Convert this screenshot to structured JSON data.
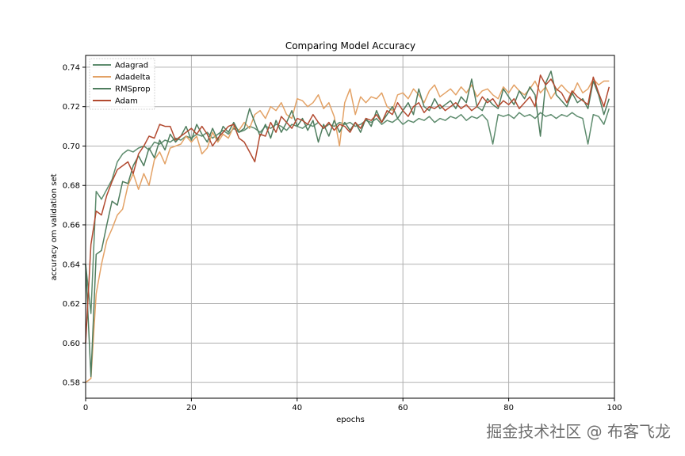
{
  "chart_data": {
    "type": "line",
    "title": "Comparing Model Accuracy",
    "xlabel": "epochs",
    "ylabel": "accuracy om validation set",
    "xlim": [
      0,
      100
    ],
    "ylim": [
      0.572,
      0.746
    ],
    "xticks": [
      0,
      20,
      40,
      60,
      80,
      100
    ],
    "yticks": [
      0.58,
      0.6,
      0.62,
      0.64,
      0.66,
      0.68,
      0.7,
      0.72,
      0.74
    ],
    "grid": true,
    "legend_position": "top-left",
    "series": [
      {
        "name": "Adagrad",
        "color": "#5e8c6e",
        "values": [
          0.64,
          0.615,
          0.677,
          0.673,
          0.678,
          0.683,
          0.692,
          0.696,
          0.698,
          0.697,
          0.699,
          0.7,
          0.698,
          0.702,
          0.701,
          0.703,
          0.702,
          0.704,
          0.703,
          0.705,
          0.704,
          0.706,
          0.705,
          0.707,
          0.704,
          0.706,
          0.708,
          0.706,
          0.709,
          0.707,
          0.708,
          0.71,
          0.709,
          0.707,
          0.71,
          0.709,
          0.711,
          0.71,
          0.708,
          0.711,
          0.71,
          0.709,
          0.711,
          0.71,
          0.712,
          0.709,
          0.711,
          0.71,
          0.712,
          0.711,
          0.712,
          0.71,
          0.711,
          0.713,
          0.712,
          0.714,
          0.711,
          0.713,
          0.712,
          0.714,
          0.711,
          0.713,
          0.712,
          0.714,
          0.713,
          0.715,
          0.712,
          0.714,
          0.713,
          0.715,
          0.714,
          0.716,
          0.713,
          0.715,
          0.714,
          0.716,
          0.713,
          0.701,
          0.716,
          0.715,
          0.716,
          0.714,
          0.717,
          0.715,
          0.716,
          0.714,
          0.717,
          0.715,
          0.716,
          0.714,
          0.716,
          0.715,
          0.717,
          0.715,
          0.714,
          0.701,
          0.716,
          0.715,
          0.711,
          0.719
        ]
      },
      {
        "name": "Adadelta",
        "color": "#e3a266",
        "values": [
          0.58,
          0.582,
          0.625,
          0.64,
          0.652,
          0.658,
          0.665,
          0.668,
          0.68,
          0.686,
          0.678,
          0.686,
          0.68,
          0.693,
          0.697,
          0.691,
          0.699,
          0.7,
          0.701,
          0.705,
          0.702,
          0.705,
          0.696,
          0.699,
          0.707,
          0.702,
          0.706,
          0.704,
          0.71,
          0.708,
          0.712,
          0.709,
          0.716,
          0.718,
          0.714,
          0.72,
          0.718,
          0.722,
          0.716,
          0.714,
          0.724,
          0.723,
          0.72,
          0.722,
          0.726,
          0.719,
          0.722,
          0.715,
          0.7,
          0.722,
          0.729,
          0.716,
          0.725,
          0.722,
          0.725,
          0.724,
          0.727,
          0.72,
          0.718,
          0.726,
          0.727,
          0.724,
          0.729,
          0.726,
          0.722,
          0.728,
          0.731,
          0.725,
          0.727,
          0.729,
          0.726,
          0.73,
          0.727,
          0.731,
          0.725,
          0.728,
          0.729,
          0.726,
          0.724,
          0.73,
          0.727,
          0.731,
          0.728,
          0.726,
          0.729,
          0.733,
          0.727,
          0.73,
          0.724,
          0.728,
          0.731,
          0.728,
          0.726,
          0.732,
          0.727,
          0.729,
          0.734,
          0.731,
          0.733,
          0.733
        ]
      },
      {
        "name": "RMSprop",
        "color": "#4f7d5e",
        "values": [
          0.64,
          0.583,
          0.645,
          0.647,
          0.66,
          0.672,
          0.67,
          0.682,
          0.681,
          0.69,
          0.695,
          0.69,
          0.699,
          0.694,
          0.703,
          0.698,
          0.706,
          0.702,
          0.705,
          0.71,
          0.703,
          0.711,
          0.706,
          0.702,
          0.709,
          0.703,
          0.71,
          0.707,
          0.712,
          0.707,
          0.709,
          0.719,
          0.712,
          0.705,
          0.711,
          0.704,
          0.713,
          0.707,
          0.712,
          0.718,
          0.71,
          0.714,
          0.708,
          0.713,
          0.702,
          0.711,
          0.705,
          0.713,
          0.707,
          0.712,
          0.708,
          0.712,
          0.707,
          0.714,
          0.71,
          0.718,
          0.712,
          0.716,
          0.72,
          0.714,
          0.718,
          0.722,
          0.716,
          0.729,
          0.72,
          0.718,
          0.724,
          0.719,
          0.721,
          0.723,
          0.719,
          0.725,
          0.722,
          0.734,
          0.72,
          0.718,
          0.724,
          0.721,
          0.719,
          0.729,
          0.725,
          0.721,
          0.728,
          0.724,
          0.73,
          0.726,
          0.705,
          0.732,
          0.738,
          0.726,
          0.723,
          0.72,
          0.727,
          0.722,
          0.724,
          0.719,
          0.733,
          0.726,
          0.716,
          0.724
        ]
      },
      {
        "name": "Adam",
        "color": "#b24a30",
        "values": [
          0.6,
          0.65,
          0.667,
          0.665,
          0.675,
          0.682,
          0.688,
          0.69,
          0.692,
          0.686,
          0.696,
          0.7,
          0.705,
          0.704,
          0.711,
          0.71,
          0.71,
          0.703,
          0.705,
          0.707,
          0.709,
          0.706,
          0.71,
          0.706,
          0.7,
          0.704,
          0.707,
          0.71,
          0.711,
          0.704,
          0.702,
          0.697,
          0.692,
          0.706,
          0.705,
          0.712,
          0.707,
          0.715,
          0.712,
          0.709,
          0.714,
          0.713,
          0.711,
          0.716,
          0.712,
          0.709,
          0.712,
          0.708,
          0.711,
          0.71,
          0.707,
          0.712,
          0.709,
          0.714,
          0.713,
          0.716,
          0.712,
          0.718,
          0.716,
          0.722,
          0.718,
          0.715,
          0.72,
          0.722,
          0.717,
          0.72,
          0.719,
          0.721,
          0.718,
          0.72,
          0.722,
          0.719,
          0.721,
          0.718,
          0.72,
          0.725,
          0.722,
          0.724,
          0.72,
          0.723,
          0.721,
          0.724,
          0.719,
          0.722,
          0.725,
          0.72,
          0.736,
          0.731,
          0.734,
          0.729,
          0.727,
          0.722,
          0.728,
          0.725,
          0.723,
          0.721,
          0.735,
          0.727,
          0.72,
          0.73
        ]
      }
    ]
  },
  "watermark": "掘金技术社区 @ 布客飞龙"
}
